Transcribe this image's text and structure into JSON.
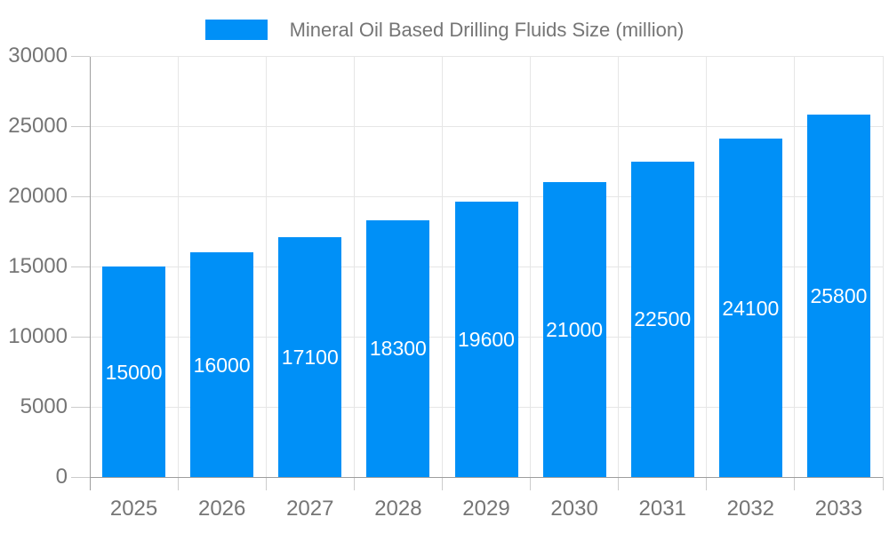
{
  "chart_data": {
    "type": "bar",
    "title": "Mineral Oil Based Drilling Fluids Size (million)",
    "categories": [
      "2025",
      "2026",
      "2027",
      "2028",
      "2029",
      "2030",
      "2031",
      "2032",
      "2033"
    ],
    "values": [
      15000,
      16000,
      17100,
      18300,
      19600,
      21000,
      22500,
      24100,
      25800
    ],
    "xlabel": "",
    "ylabel": "",
    "ylim": [
      0,
      30000
    ],
    "yticks": [
      0,
      5000,
      10000,
      15000,
      20000,
      25000,
      30000
    ],
    "grid": true,
    "legend_position": "top",
    "colors": {
      "bar": "#0090f7",
      "bar_value_label": "#ffffff",
      "axis_text": "#757575",
      "legend_text": "#757575",
      "gridline": "#e6e6e6",
      "axis_line": "#9e9e9e",
      "tick": "#cccccc",
      "background": "#ffffff"
    }
  }
}
